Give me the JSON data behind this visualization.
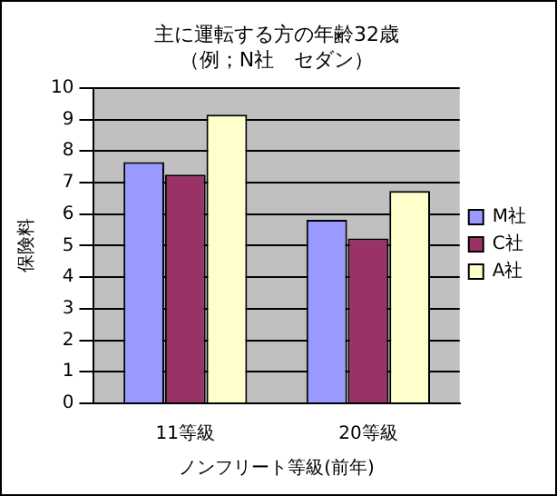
{
  "chart_data": {
    "type": "bar",
    "title": "主に運転する方の年齢32歳",
    "subtitle": "（例；N社　セダン）",
    "xlabel": "ノンフリート等級(前年)",
    "ylabel": "保険料",
    "categories": [
      "11等級",
      "20等級"
    ],
    "series": [
      {
        "name": "M社",
        "color": "#9999ff",
        "values": [
          7.65,
          5.82
        ]
      },
      {
        "name": "C社",
        "color": "#993366",
        "values": [
          7.25,
          5.23
        ]
      },
      {
        "name": "A社",
        "color": "#ffffcc",
        "values": [
          9.15,
          6.73
        ]
      }
    ],
    "ylim": [
      0,
      10
    ],
    "yticks": [
      0,
      1,
      2,
      3,
      4,
      5,
      6,
      7,
      8,
      9,
      10
    ],
    "grid": "y",
    "legend": "right"
  }
}
